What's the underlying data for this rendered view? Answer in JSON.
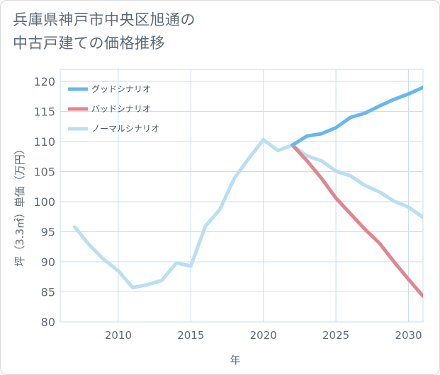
{
  "title_lines": [
    "兵庫県神戸市中央区旭通の",
    "中古戸建ての価格推移"
  ],
  "chart_data": {
    "type": "line",
    "title": "兵庫県神戸市中央区旭通の中古戸建ての価格推移",
    "xlabel": "年",
    "ylabel": "坪（3.3㎡）単価（万円）",
    "xlim": [
      2006,
      2031
    ],
    "ylim": [
      80,
      122
    ],
    "x_ticks": [
      2010,
      2015,
      2020,
      2025,
      2030
    ],
    "y_ticks": [
      80,
      85,
      90,
      95,
      100,
      105,
      110,
      115,
      120
    ],
    "grid": true,
    "legend_position": "top-left",
    "series": [
      {
        "name": "グッドシナリオ",
        "color": "#6ab7ef",
        "x": [
          2022,
          2023,
          2024,
          2025,
          2026,
          2027,
          2028,
          2029,
          2030,
          2031
        ],
        "values": [
          109.4,
          110.9,
          111.3,
          112.3,
          114.0,
          114.7,
          115.9,
          117.0,
          117.9,
          119.0
        ]
      },
      {
        "name": "バッドシナリオ",
        "color": "#e0868f",
        "x": [
          2022,
          2023,
          2024,
          2025,
          2026,
          2027,
          2028,
          2029,
          2030,
          2031
        ],
        "values": [
          109.4,
          106.8,
          103.9,
          100.6,
          98.0,
          95.4,
          93.1,
          90.0,
          87.1,
          84.3
        ]
      },
      {
        "name": "ノーマルシナリオ",
        "color": "#b9dff1",
        "x": [
          2007,
          2008,
          2009,
          2010,
          2011,
          2012,
          2013,
          2014,
          2015,
          2016,
          2017,
          2018,
          2019,
          2020,
          2021,
          2022,
          2023,
          2024,
          2025,
          2026,
          2027,
          2028,
          2029,
          2030,
          2031
        ],
        "values": [
          95.8,
          92.8,
          90.4,
          88.5,
          85.7,
          86.2,
          86.9,
          89.8,
          89.3,
          95.9,
          98.7,
          103.9,
          107.2,
          110.3,
          108.5,
          109.4,
          107.6,
          106.8,
          105.1,
          104.3,
          102.7,
          101.6,
          100.1,
          99.1,
          97.4
        ]
      }
    ]
  }
}
